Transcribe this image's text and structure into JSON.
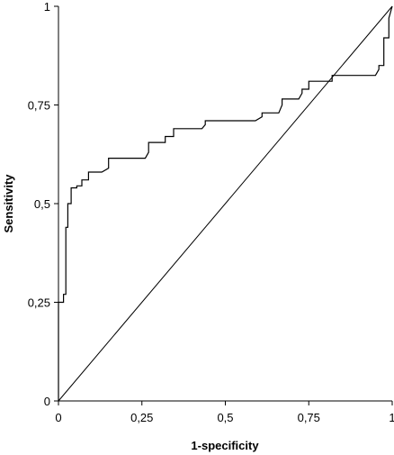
{
  "chart_data": {
    "type": "line",
    "title": "",
    "xlabel": "1-specificity",
    "ylabel": "Sensitivity",
    "xlim": [
      0,
      1
    ],
    "ylim": [
      0,
      1
    ],
    "x_ticks": [
      0,
      0.25,
      0.5,
      0.75,
      1
    ],
    "x_tick_labels": [
      "0",
      "0,25",
      "0,5",
      "0,75",
      "1"
    ],
    "y_ticks": [
      0,
      0.25,
      0.5,
      0.75,
      1
    ],
    "y_tick_labels": [
      "0",
      "0,25",
      "0,5",
      "0,75",
      "1"
    ],
    "grid": false,
    "legend": "none",
    "series": [
      {
        "x": [
          0,
          0,
          0.015,
          0.015,
          0.022,
          0.022,
          0.028,
          0.028,
          0.038,
          0.038,
          0.055,
          0.055,
          0.07,
          0.07,
          0.09,
          0.09,
          0.13,
          0.15,
          0.15,
          0.26,
          0.27,
          0.27,
          0.32,
          0.32,
          0.345,
          0.345,
          0.43,
          0.44,
          0.44,
          0.59,
          0.61,
          0.61,
          0.66,
          0.67,
          0.67,
          0.72,
          0.73,
          0.73,
          0.75,
          0.75,
          0.82,
          0.82,
          0.95,
          0.96,
          0.96,
          0.975,
          0.975,
          0.99,
          0.99,
          1
        ],
        "y": [
          0,
          0.25,
          0.25,
          0.27,
          0.27,
          0.44,
          0.44,
          0.5,
          0.5,
          0.54,
          0.54,
          0.545,
          0.545,
          0.56,
          0.56,
          0.58,
          0.58,
          0.59,
          0.615,
          0.615,
          0.63,
          0.655,
          0.655,
          0.67,
          0.67,
          0.69,
          0.69,
          0.7,
          0.71,
          0.71,
          0.72,
          0.73,
          0.73,
          0.75,
          0.765,
          0.765,
          0.78,
          0.79,
          0.79,
          0.81,
          0.81,
          0.825,
          0.825,
          0.84,
          0.85,
          0.85,
          0.92,
          0.92,
          0.97,
          1
        ]
      },
      {
        "x": [
          0,
          1
        ],
        "y": [
          0,
          1
        ]
      }
    ]
  }
}
